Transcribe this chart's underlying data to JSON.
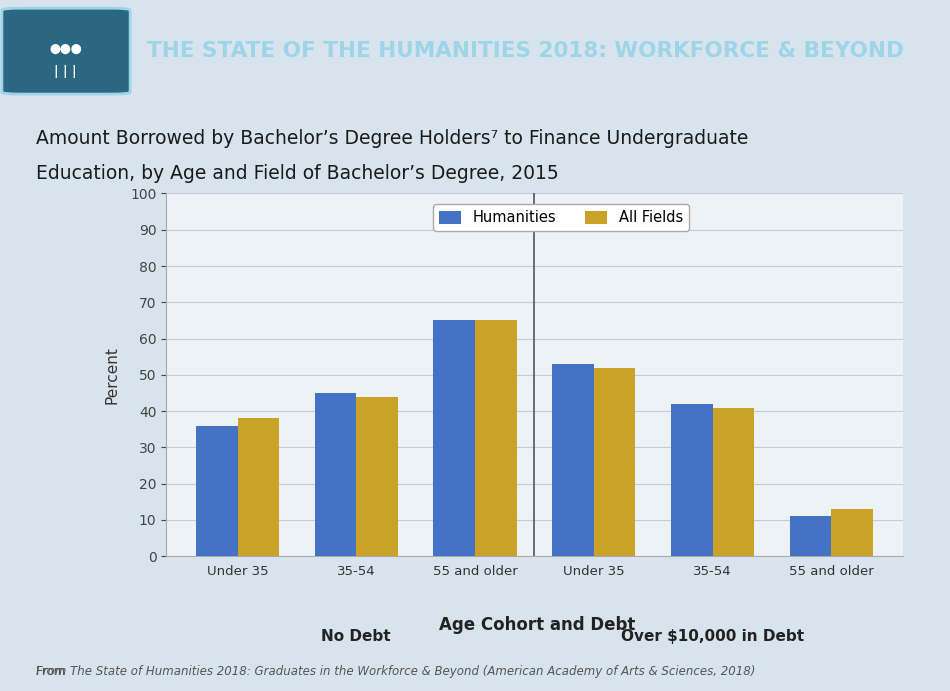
{
  "title_banner": "THE STATE OF THE HUMANITIES 2018: WORKFORCE & BEYOND",
  "chart_title_line1": "Amount Borrowed by Bachelor’s Degree Holders⁷ to Finance Undergraduate",
  "chart_title_line2": "Education, by Age and Field of Bachelor’s Degree, 2015",
  "categories": [
    "Under 35",
    "35-54",
    "55 and older",
    "Under 35",
    "35-54",
    "55 and older"
  ],
  "group_labels": [
    "No Debt",
    "Over $10,000 in Debt"
  ],
  "group_centers": [
    1.0,
    4.0
  ],
  "humanities_values": [
    36,
    45,
    65,
    53,
    42,
    11
  ],
  "allfields_values": [
    38,
    44,
    65,
    52,
    41,
    13
  ],
  "humanities_color": "#4472C4",
  "allfields_color": "#C9A227",
  "ylabel": "Percent",
  "xlabel": "Age Cohort and Debt",
  "ylim": [
    0,
    100
  ],
  "yticks": [
    0,
    10,
    20,
    30,
    40,
    50,
    60,
    70,
    80,
    90,
    100
  ],
  "legend_labels": [
    "Humanities",
    "All Fields"
  ],
  "background_color": "#d8e4ed",
  "chart_bg_color": "#edf2f7",
  "banner_bg_color": "#1c1c2e",
  "banner_text_color": "#9dd4e8",
  "icon_box_color": "#2a6882",
  "stripe_color": "#7bafc4",
  "footer_text_plain": "From ",
  "footer_text_italic": "The State of Humanities 2018: Graduates in the Workforce & Beyond",
  "footer_text_end": " (American Academy of Arts & Sciences, 2018)",
  "grid_color": "#c0cdd8",
  "spine_color": "#aaaaaa",
  "bar_width": 0.35,
  "divider_x": 2.5,
  "xlim_left": -0.6,
  "xlim_right": 5.6
}
